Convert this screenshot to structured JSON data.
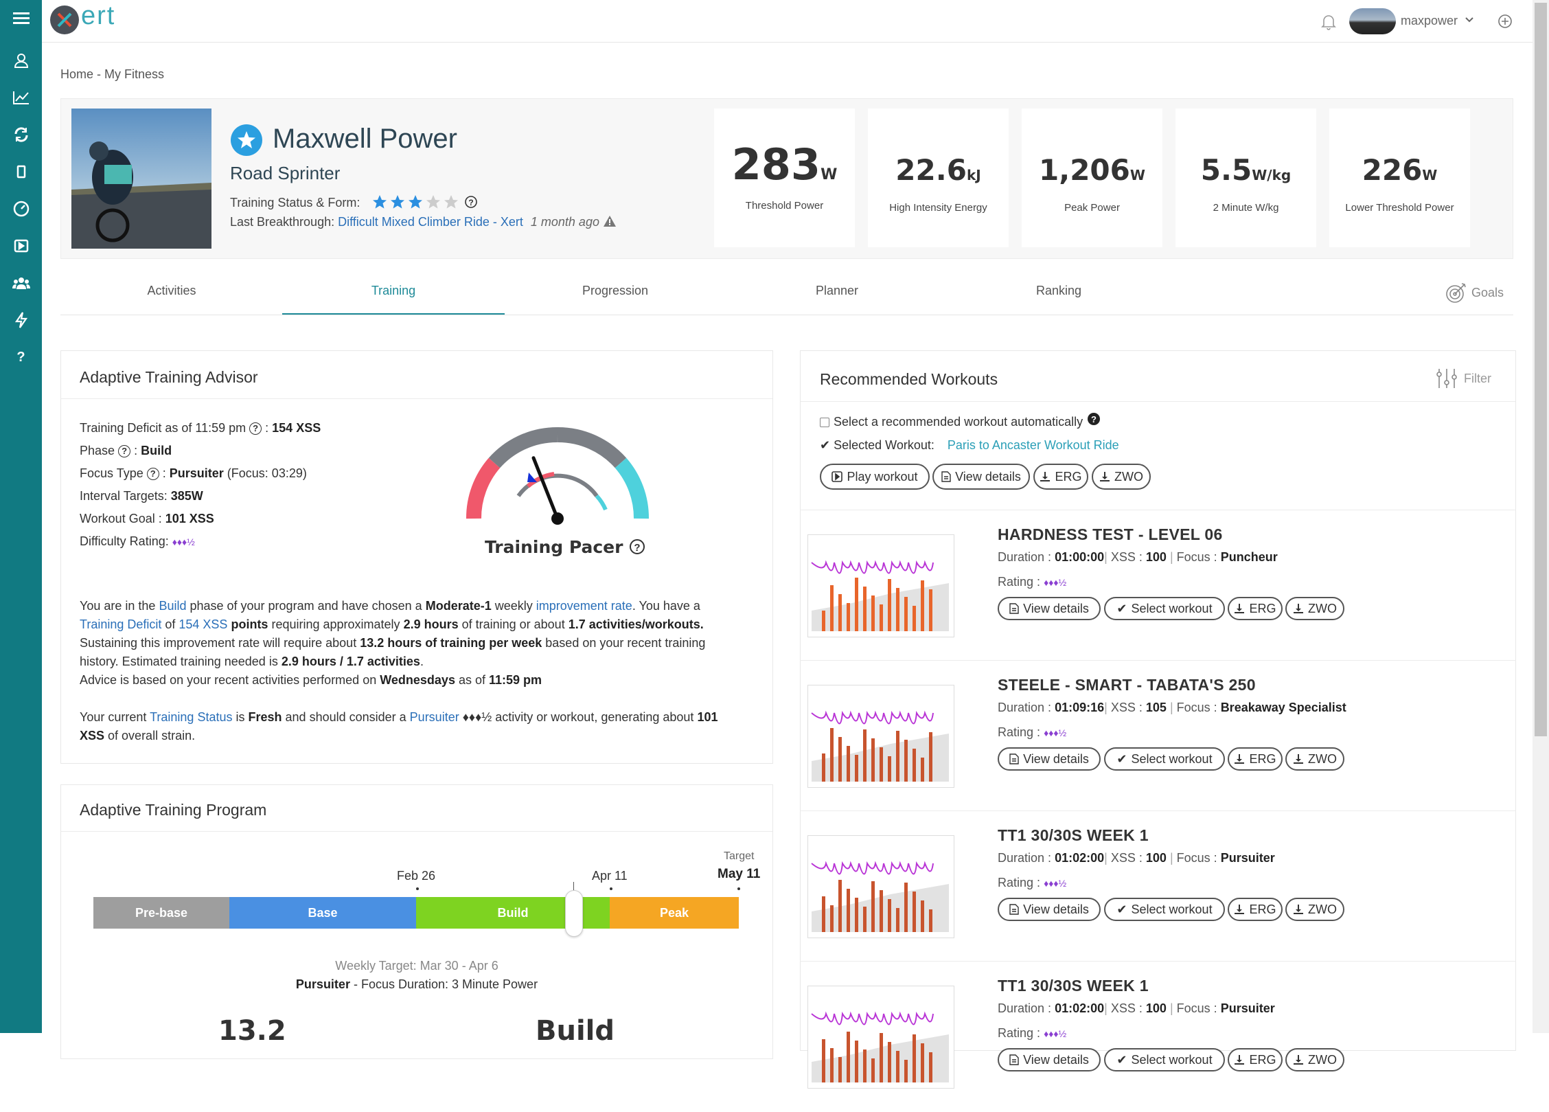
{
  "app": {
    "logo_text": "ert",
    "username": "maxpower"
  },
  "breadcrumb": "Home - My Fitness",
  "profile": {
    "name": "Maxwell Power",
    "subtitle": "Road Sprinter",
    "status_label": "Training Status & Form:",
    "stars": 3,
    "stars_max": 5,
    "breakthrough_label": "Last Breakthrough:",
    "breakthrough_link": "Difficult Mixed Climber Ride - Xert",
    "breakthrough_time": "1 month ago"
  },
  "stats": [
    {
      "value": "283",
      "unit": "W",
      "label": "Threshold Power"
    },
    {
      "value": "22.6",
      "unit": "kJ",
      "label": "High Intensity Energy"
    },
    {
      "value": "1,206",
      "unit": "W",
      "label": "Peak Power"
    },
    {
      "value": "5.5",
      "unit": "W/kg",
      "label": "2 Minute W/kg"
    },
    {
      "value": "226",
      "unit": "W",
      "label": "Lower Threshold Power"
    }
  ],
  "tabs": [
    "Activities",
    "Training",
    "Progression",
    "Planner",
    "Ranking"
  ],
  "active_tab": "Training",
  "goals_label": "Goals",
  "advisor": {
    "title": "Adaptive Training Advisor",
    "deficit_label": "Training Deficit as of 11:59 pm",
    "deficit_value": "154 XSS",
    "phase_label": "Phase",
    "phase_value": "Build",
    "focus_label": "Focus Type",
    "focus_value": "Pursuiter",
    "focus_extra": "(Focus: 03:29)",
    "interval_label": "Interval Targets:",
    "interval_value": "385W",
    "goal_label": "Workout Goal :",
    "goal_value": "101 XSS",
    "difficulty_label": "Difficulty Rating:",
    "difficulty_value": "♦♦♦½",
    "pacer_label": "Training Pacer",
    "pacer_position": 0.38
  },
  "advice": {
    "p1": [
      "You are in the ",
      "Build",
      " phase of your program and have chosen a ",
      "Moderate-1",
      " weekly ",
      "improvement rate",
      ". You have a"
    ],
    "p2": [
      "Training Deficit",
      " of ",
      "154 XSS",
      " points",
      " requiring approximately ",
      "2.9 hours",
      " of training or about ",
      "1.7 activities/workouts."
    ],
    "p3": [
      "Sustaining this improvement rate will require about ",
      "13.2 hours of training per week",
      " based on your recent training"
    ],
    "p4": [
      "history. Estimated training needed is ",
      "2.9 hours / 1.7 activities",
      "."
    ],
    "p5": [
      "Advice is based on your recent activities performed on ",
      "Wednesdays",
      " as of ",
      "11:59 pm"
    ],
    "p6": [
      "Your current ",
      "Training Status",
      " is ",
      "Fresh",
      " and should consider a ",
      "Pursuiter",
      " ♦♦♦½ activity or workout, generating about ",
      "101"
    ],
    "p7": [
      "XSS",
      " of overall strain."
    ]
  },
  "program": {
    "title": "Adaptive Training Program",
    "phases": [
      "Pre-base",
      "Base",
      "Build",
      "Peak"
    ],
    "phase_colors": [
      "#9e9e9e",
      "#4a90e2",
      "#7ed321",
      "#f5a623"
    ],
    "date1": "Feb 26",
    "date2": "Apr 11",
    "target_label": "Target",
    "target_date": "May 11",
    "weekly_target": "Weekly Target: Mar 30 - Apr 6",
    "focus_line_a": "Pursuiter",
    "focus_line_b": " - Focus Duration: 3 Minute Power",
    "bottom_value": "13.2",
    "bottom_phase": "Build"
  },
  "recommended": {
    "title": "Recommended Workouts",
    "filter_label": "Filter",
    "auto_label": "Select a recommended workout automatically",
    "selected_label": "Selected Workout:",
    "selected_value": "Paris to Ancaster Workout Ride",
    "buttons": {
      "play": "Play workout",
      "details": "View details",
      "erg": "ERG",
      "zwo": "ZWO",
      "select": "Select workout"
    }
  },
  "workouts": [
    {
      "title": "HARDNESS TEST - LEVEL 06",
      "duration": "01:00:00",
      "xss": "100",
      "focus": "Puncheur",
      "rating": "♦♦♦½"
    },
    {
      "title": "STEELE - SMART - TABATA'S 250",
      "duration": "01:09:16",
      "xss": "105",
      "focus": "Breakaway Specialist",
      "rating": "♦♦♦½"
    },
    {
      "title": "TT1 30/30S WEEK 1",
      "duration": "01:02:00",
      "xss": "100",
      "focus": "Pursuiter",
      "rating": "♦♦♦½"
    },
    {
      "title": "TT1 30/30S WEEK 1",
      "duration": "01:02:00",
      "xss": "100",
      "focus": "Pursuiter",
      "rating": "♦♦♦½"
    }
  ],
  "labels": {
    "duration": "Duration :",
    "xss": "XSS :",
    "focus": "Focus :",
    "rating": "Rating :"
  }
}
